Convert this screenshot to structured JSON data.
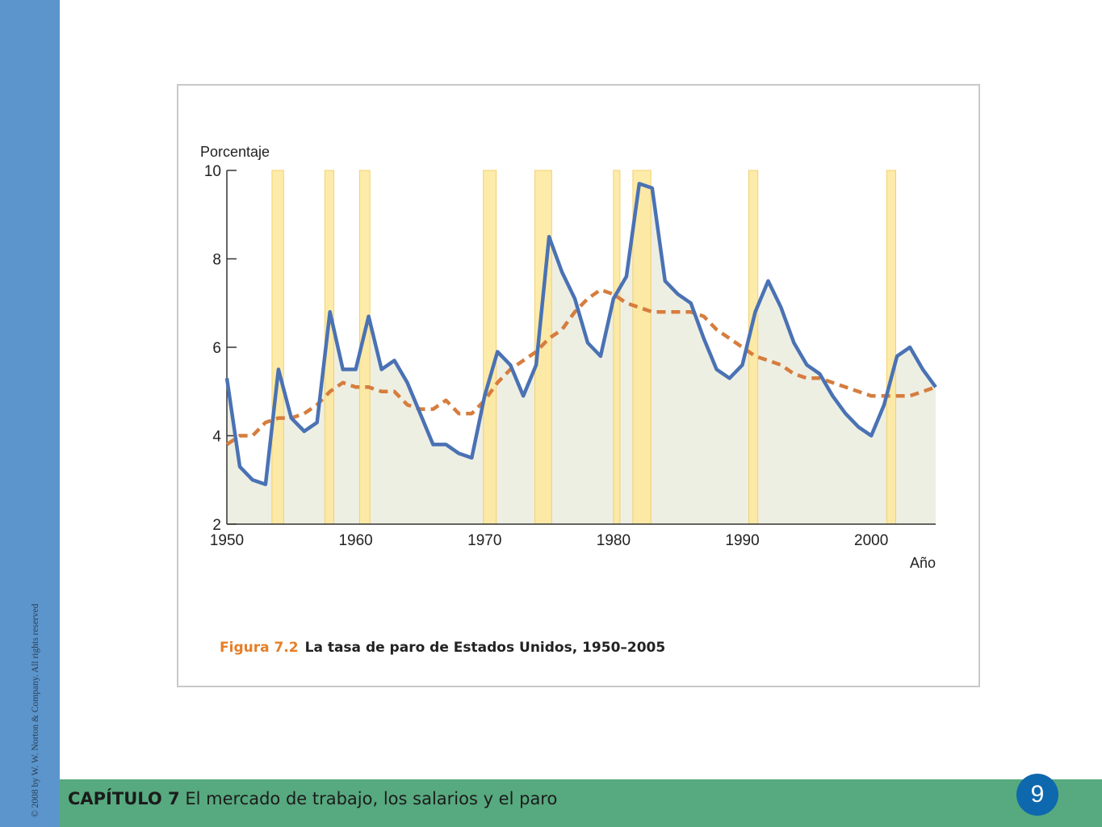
{
  "sidebar": {
    "copyright": "© 2008 by W. W. Norton & Company. All rights reserved"
  },
  "footer": {
    "chapter_label": "CAPÍTULO 7",
    "chapter_title": "El mercado de trabajo, los salarios y el paro",
    "page_number": "9"
  },
  "figure": {
    "label": "Figura 7.2",
    "title": "La tasa de paro de Estados Unidos, 1950–2005"
  },
  "colors": {
    "actual_line": "#4a72b4",
    "natural_line": "#d67d3e",
    "recession_fill": "#fde89a",
    "area_fill": "#eeefe3",
    "left_bar": "#5b95cb",
    "bottom_bar": "#57a97f",
    "badge": "#0e68ad",
    "figure_label": "#e57e27"
  },
  "chart_data": {
    "type": "line",
    "ylabel": "Porcentaje",
    "xlabel": "Año",
    "xlim": [
      1950,
      2005
    ],
    "ylim": [
      2,
      10
    ],
    "x_ticks": [
      1950,
      1960,
      1970,
      1980,
      1990,
      2000
    ],
    "y_ticks": [
      2,
      4,
      6,
      8,
      10
    ],
    "grid": false,
    "legend": "none",
    "recessions": [
      [
        1953.5,
        1954.4
      ],
      [
        1957.6,
        1958.3
      ],
      [
        1960.3,
        1961.1
      ],
      [
        1969.9,
        1970.9
      ],
      [
        1973.9,
        1975.2
      ],
      [
        1980.0,
        1980.5
      ],
      [
        1981.5,
        1982.9
      ],
      [
        1990.5,
        1991.2
      ],
      [
        2001.2,
        2001.9
      ]
    ],
    "series": [
      {
        "style": "solid",
        "area": true,
        "x": [
          1950,
          1951,
          1952,
          1953,
          1954,
          1955,
          1956,
          1957,
          1958,
          1959,
          1960,
          1961,
          1962,
          1963,
          1964,
          1965,
          1966,
          1967,
          1968,
          1969,
          1970,
          1971,
          1972,
          1973,
          1974,
          1975,
          1976,
          1977,
          1978,
          1979,
          1980,
          1981,
          1982,
          1983,
          1984,
          1985,
          1986,
          1987,
          1988,
          1989,
          1990,
          1991,
          1992,
          1993,
          1994,
          1995,
          1996,
          1997,
          1998,
          1999,
          2000,
          2001,
          2002,
          2003,
          2004,
          2005
        ],
        "values": [
          5.3,
          3.3,
          3.0,
          2.9,
          5.5,
          4.4,
          4.1,
          4.3,
          6.8,
          5.5,
          5.5,
          6.7,
          5.5,
          5.7,
          5.2,
          4.5,
          3.8,
          3.8,
          3.6,
          3.5,
          4.9,
          5.9,
          5.6,
          4.9,
          5.6,
          8.5,
          7.7,
          7.1,
          6.1,
          5.8,
          7.1,
          7.6,
          9.7,
          9.6,
          7.5,
          7.2,
          7.0,
          6.2,
          5.5,
          5.3,
          5.6,
          6.8,
          7.5,
          6.9,
          6.1,
          5.6,
          5.4,
          4.9,
          4.5,
          4.2,
          4.0,
          4.7,
          5.8,
          6.0,
          5.5,
          5.1
        ]
      },
      {
        "style": "dashed",
        "x": [
          1950,
          1951,
          1952,
          1953,
          1954,
          1955,
          1956,
          1957,
          1958,
          1959,
          1960,
          1961,
          1962,
          1963,
          1964,
          1965,
          1966,
          1967,
          1968,
          1969,
          1970,
          1971,
          1972,
          1973,
          1974,
          1975,
          1976,
          1977,
          1978,
          1979,
          1980,
          1981,
          1982,
          1983,
          1984,
          1985,
          1986,
          1987,
          1988,
          1989,
          1990,
          1991,
          1992,
          1993,
          1994,
          1995,
          1996,
          1997,
          1998,
          1999,
          2000,
          2001,
          2002,
          2003,
          2004,
          2005
        ],
        "values": [
          3.8,
          4.0,
          4.0,
          4.3,
          4.4,
          4.4,
          4.5,
          4.7,
          5.0,
          5.2,
          5.1,
          5.1,
          5.0,
          5.0,
          4.7,
          4.6,
          4.6,
          4.8,
          4.5,
          4.5,
          4.8,
          5.2,
          5.5,
          5.7,
          5.9,
          6.2,
          6.4,
          6.8,
          7.1,
          7.3,
          7.2,
          7.0,
          6.9,
          6.8,
          6.8,
          6.8,
          6.8,
          6.7,
          6.4,
          6.2,
          6.0,
          5.8,
          5.7,
          5.6,
          5.4,
          5.3,
          5.3,
          5.2,
          5.1,
          5.0,
          4.9,
          4.9,
          4.9,
          4.9,
          5.0,
          5.1
        ]
      }
    ]
  }
}
